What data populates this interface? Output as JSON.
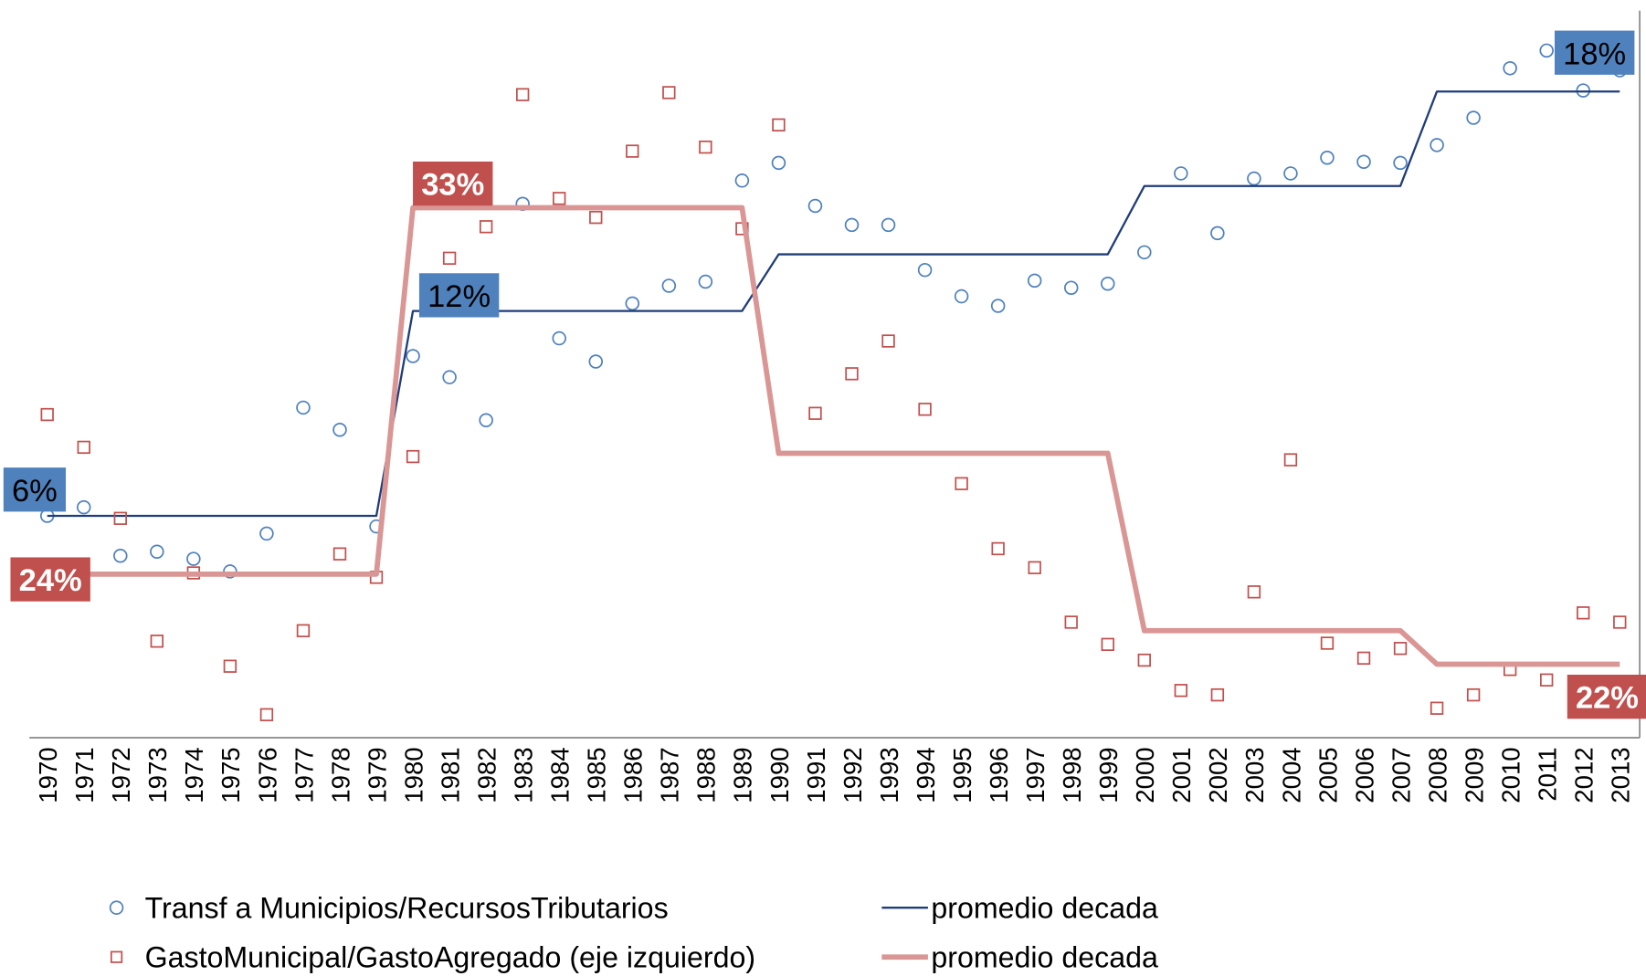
{
  "chart_data": {
    "type": "scatter",
    "categories": [
      "1970",
      "1971",
      "1972",
      "1973",
      "1974",
      "1975",
      "1976",
      "1977",
      "1978",
      "1979",
      "1980",
      "1981",
      "1982",
      "1983",
      "1984",
      "1985",
      "1986",
      "1987",
      "1988",
      "1989",
      "1990",
      "1991",
      "1992",
      "1993",
      "1994",
      "1995",
      "1996",
      "1997",
      "1998",
      "1999",
      "2000",
      "2001",
      "2002",
      "2003",
      "2004",
      "2005",
      "2006",
      "2007",
      "2008",
      "2009",
      "2010",
      "2011",
      "2012",
      "2013"
    ],
    "ylim": [
      20,
      38
    ],
    "y2lim": [
      -0.5,
      20.8
    ],
    "legend": "bottom",
    "series": [
      {
        "name": "Transf a Municipios/RecursosTributarios",
        "type": "scatter",
        "marker": "circle",
        "color": "#4f81bd",
        "axis": "y2",
        "values": [
          6.0,
          6.25,
          4.83,
          4.95,
          4.74,
          4.37,
          5.48,
          9.17,
          8.52,
          5.69,
          10.68,
          10.06,
          8.8,
          15.14,
          11.2,
          10.52,
          12.22,
          12.74,
          12.86,
          15.82,
          16.34,
          15.08,
          14.52,
          14.52,
          13.2,
          12.43,
          12.15,
          12.89,
          12.68,
          12.8,
          13.72,
          16.03,
          14.28,
          15.88,
          16.03,
          16.49,
          16.37,
          16.34,
          16.86,
          17.66,
          19.11,
          19.63,
          18.46,
          19.05
        ]
      },
      {
        "name": "promedio decada",
        "type": "line",
        "color": "#1f3d7a",
        "axis": "y2",
        "values": [
          6.0,
          6.0,
          6.0,
          6.0,
          6.0,
          6.0,
          6.0,
          6.0,
          6.0,
          6.0,
          12.0,
          12.0,
          12.0,
          12.0,
          12.0,
          12.0,
          12.0,
          12.0,
          12.0,
          12.0,
          13.66,
          13.66,
          13.66,
          13.66,
          13.66,
          13.66,
          13.66,
          13.66,
          13.66,
          13.66,
          15.66,
          15.66,
          15.66,
          15.66,
          15.66,
          15.66,
          15.66,
          15.66,
          18.43,
          18.43,
          18.43,
          18.43,
          18.43,
          18.43
        ],
        "value_labels": [
          "6%",
          null,
          null,
          null,
          null,
          null,
          null,
          null,
          null,
          null,
          "12%",
          null,
          null,
          null,
          null,
          null,
          null,
          null,
          null,
          null,
          null,
          null,
          null,
          null,
          null,
          null,
          null,
          null,
          null,
          null,
          null,
          null,
          null,
          null,
          null,
          null,
          null,
          null,
          null,
          null,
          null,
          null,
          null,
          "18%"
        ],
        "label_color": "#4f81bd"
      },
      {
        "name": "GastoMunicipal/GastoAgregado (eje izquierdo)",
        "type": "scatter",
        "marker": "square",
        "color": "#c0504d",
        "values": [
          28.0,
          27.19,
          25.43,
          22.39,
          24.08,
          21.77,
          20.57,
          22.65,
          24.55,
          23.97,
          26.96,
          31.87,
          32.65,
          35.92,
          33.35,
          32.88,
          34.52,
          35.97,
          34.62,
          32.6,
          35.17,
          28.03,
          29.01,
          29.82,
          28.13,
          26.29,
          24.68,
          24.21,
          22.86,
          22.31,
          21.92,
          21.17,
          21.06,
          23.61,
          26.88,
          22.34,
          21.97,
          22.21,
          20.73,
          21.06,
          21.69,
          21.43,
          23.09,
          22.86
        ]
      },
      {
        "name": "promedio decada",
        "type": "line",
        "color": "#d99694",
        "width": 5,
        "values": [
          24.05,
          24.05,
          24.05,
          24.05,
          24.05,
          24.05,
          24.05,
          24.05,
          24.05,
          24.05,
          33.12,
          33.12,
          33.12,
          33.12,
          33.12,
          33.12,
          33.12,
          33.12,
          33.12,
          33.12,
          27.04,
          27.04,
          27.04,
          27.04,
          27.04,
          27.04,
          27.04,
          27.04,
          27.04,
          27.04,
          22.65,
          22.65,
          22.65,
          22.65,
          22.65,
          22.65,
          22.65,
          22.65,
          21.82,
          21.82,
          21.82,
          21.82,
          21.82,
          21.82
        ],
        "value_labels": [
          "24%",
          null,
          null,
          null,
          null,
          null,
          null,
          null,
          null,
          null,
          "33%",
          null,
          null,
          null,
          null,
          null,
          null,
          null,
          null,
          null,
          null,
          null,
          null,
          null,
          null,
          null,
          null,
          null,
          null,
          null,
          null,
          null,
          null,
          null,
          null,
          null,
          null,
          null,
          null,
          null,
          null,
          null,
          null,
          "22%"
        ],
        "label_color": "#c0504d"
      }
    ]
  }
}
